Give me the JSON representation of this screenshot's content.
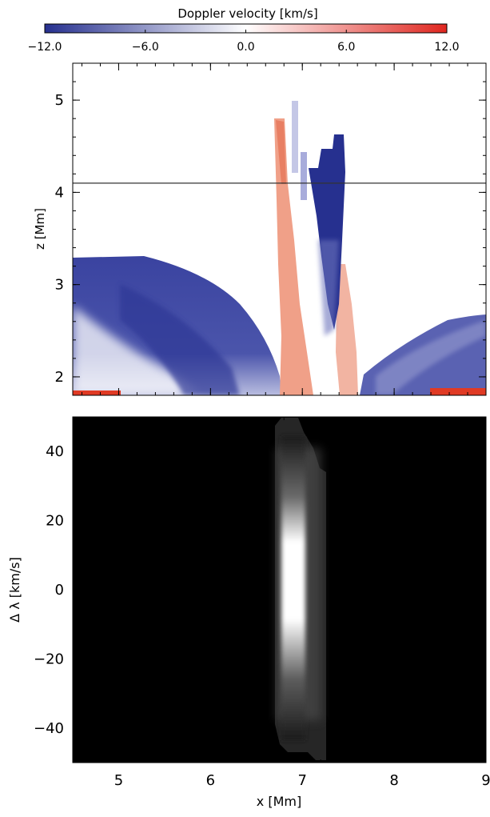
{
  "chart_data": [
    {
      "type": "colorbar",
      "title": "Doppler velocity [km/s]",
      "range": [
        -12,
        12
      ],
      "ticks": [
        -12,
        -6,
        0,
        6,
        12
      ],
      "tick_labels": [
        "−12.0",
        "−6.0",
        "0.0",
        "6.0",
        "12.0"
      ],
      "colors": {
        "negative": "#26308f",
        "zero": "#ffffff",
        "positive": "#e0261f"
      }
    },
    {
      "type": "heatmap",
      "ylabel": "z [Mm]",
      "xlim": [
        4.5,
        9.0
      ],
      "ylim": [
        1.8,
        5.4
      ],
      "x_ticks": [
        5,
        6,
        7,
        8,
        9
      ],
      "y_ticks": [
        2,
        3,
        4,
        5
      ],
      "y_tick_labels": [
        "2",
        "3",
        "4",
        "5"
      ],
      "reference_line_z": 4.1,
      "features": [
        {
          "name": "left-dome-blueshift",
          "x_range": [
            4.5,
            7.0
          ],
          "top_z": 3.33,
          "velocity": -9
        },
        {
          "name": "central-red-column",
          "x_range": [
            6.7,
            7.0
          ],
          "z_range": [
            1.85,
            4.85
          ],
          "velocity": 5
        },
        {
          "name": "central-blue-column",
          "x_range": [
            7.05,
            7.25
          ],
          "z_range": [
            2.8,
            4.65
          ],
          "velocity": -12
        },
        {
          "name": "right-dome-blueshift",
          "x_range": [
            7.55,
            9.0
          ],
          "top_z": 2.7,
          "velocity": -7
        },
        {
          "name": "bottom-redshift-left",
          "x_range": [
            4.5,
            5.0
          ],
          "z_range": [
            1.8,
            1.85
          ],
          "velocity": 12
        },
        {
          "name": "bottom-redshift-right",
          "x_range": [
            8.4,
            9.0
          ],
          "z_range": [
            1.8,
            1.86
          ],
          "velocity": 12
        }
      ]
    },
    {
      "type": "heatmap",
      "xlabel": "x [Mm]",
      "ylabel": "Δ λ [km/s]",
      "xlim": [
        4.5,
        9.0
      ],
      "ylim": [
        -50,
        50
      ],
      "x_ticks": [
        5,
        6,
        7,
        8,
        9
      ],
      "x_tick_labels": [
        "5",
        "6",
        "7",
        "8",
        "9"
      ],
      "y_ticks": [
        -40,
        -20,
        0,
        20,
        40
      ],
      "y_tick_labels": [
        "−40",
        "−20",
        "0",
        "20",
        "40"
      ],
      "emission": {
        "x_range": [
          6.72,
          7.28
        ],
        "peak_x": 6.88,
        "peak_dlambda": [
          -12,
          15
        ],
        "color": "#ffffff",
        "background": "#000000"
      }
    }
  ]
}
